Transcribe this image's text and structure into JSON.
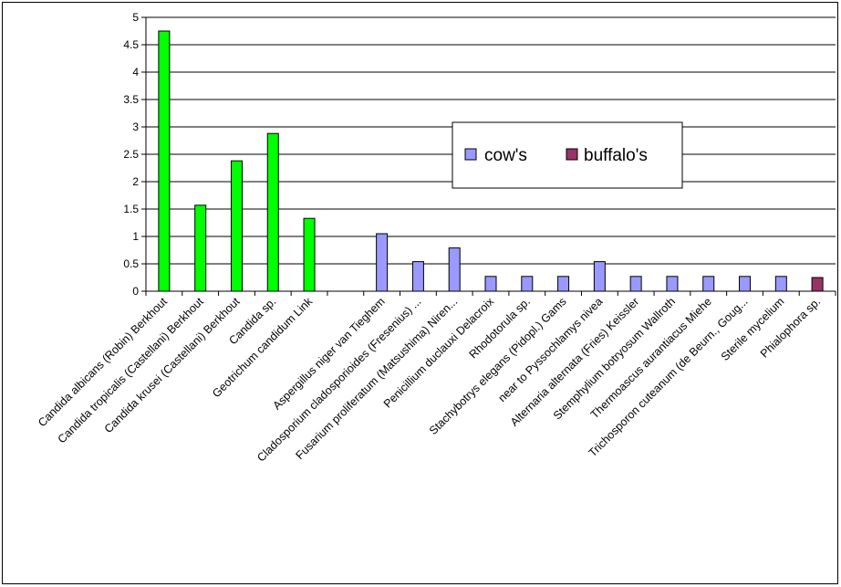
{
  "chart_data": {
    "type": "bar",
    "title": "",
    "xlabel": "",
    "ylabel": "",
    "ylim": [
      0,
      5
    ],
    "yticks": [
      "0",
      "0.5",
      "1",
      "1.5",
      "2",
      "2.5",
      "3",
      "3.5",
      "4",
      "4.5",
      "5"
    ],
    "grid": true,
    "legend_position": "center-right",
    "categories": [
      "Candida albicans (Robin) Berkhout",
      "Candida tropicalis (Castellani) Berkhout",
      "Candida krusei (Castellani) Berkhout",
      "Candida sp.",
      "Geotrichum candidum Link",
      "",
      "Aspergillus niger van Tieghem",
      "Cladosporium cladosporioides (Fresenius) ...",
      "Fusarium proliferatum (Matsushima) Niren...",
      "Penicillium duclauxi Delacroix",
      "Rhodotorula sp.",
      "Stachybotrys elegans (Pidopl.) Gams",
      "near to Pyssochlamys nivea",
      "Alternaria alternata (Fries) Keissler",
      "Stemphylium botryosum Wallroth",
      "Thermoascus aurantiacus Miehe",
      "Trichosporon cuteanum (de Beurn., Goug...",
      "Sterile mycelium",
      "Phialophora sp."
    ],
    "bars": [
      {
        "value": 4.75,
        "color": "#00ff00"
      },
      {
        "value": 1.57,
        "color": "#00ff00"
      },
      {
        "value": 2.38,
        "color": "#00ff00"
      },
      {
        "value": 2.88,
        "color": "#00ff00"
      },
      {
        "value": 1.33,
        "color": "#00ff00"
      },
      {
        "value": 0,
        "color": "#00ff00"
      },
      {
        "value": 1.05,
        "color": "#9999ff"
      },
      {
        "value": 0.54,
        "color": "#9999ff"
      },
      {
        "value": 0.79,
        "color": "#9999ff"
      },
      {
        "value": 0.27,
        "color": "#9999ff"
      },
      {
        "value": 0.27,
        "color": "#9999ff"
      },
      {
        "value": 0.27,
        "color": "#9999ff"
      },
      {
        "value": 0.54,
        "color": "#9999ff"
      },
      {
        "value": 0.27,
        "color": "#9999ff"
      },
      {
        "value": 0.27,
        "color": "#9999ff"
      },
      {
        "value": 0.27,
        "color": "#9999ff"
      },
      {
        "value": 0.27,
        "color": "#9999ff"
      },
      {
        "value": 0.27,
        "color": "#9999ff"
      },
      {
        "value": 0.25,
        "color": "#993366"
      }
    ],
    "legend": [
      {
        "name": "cow's",
        "color": "#9999ff"
      },
      {
        "name": "buffalo's",
        "color": "#993366"
      }
    ]
  }
}
